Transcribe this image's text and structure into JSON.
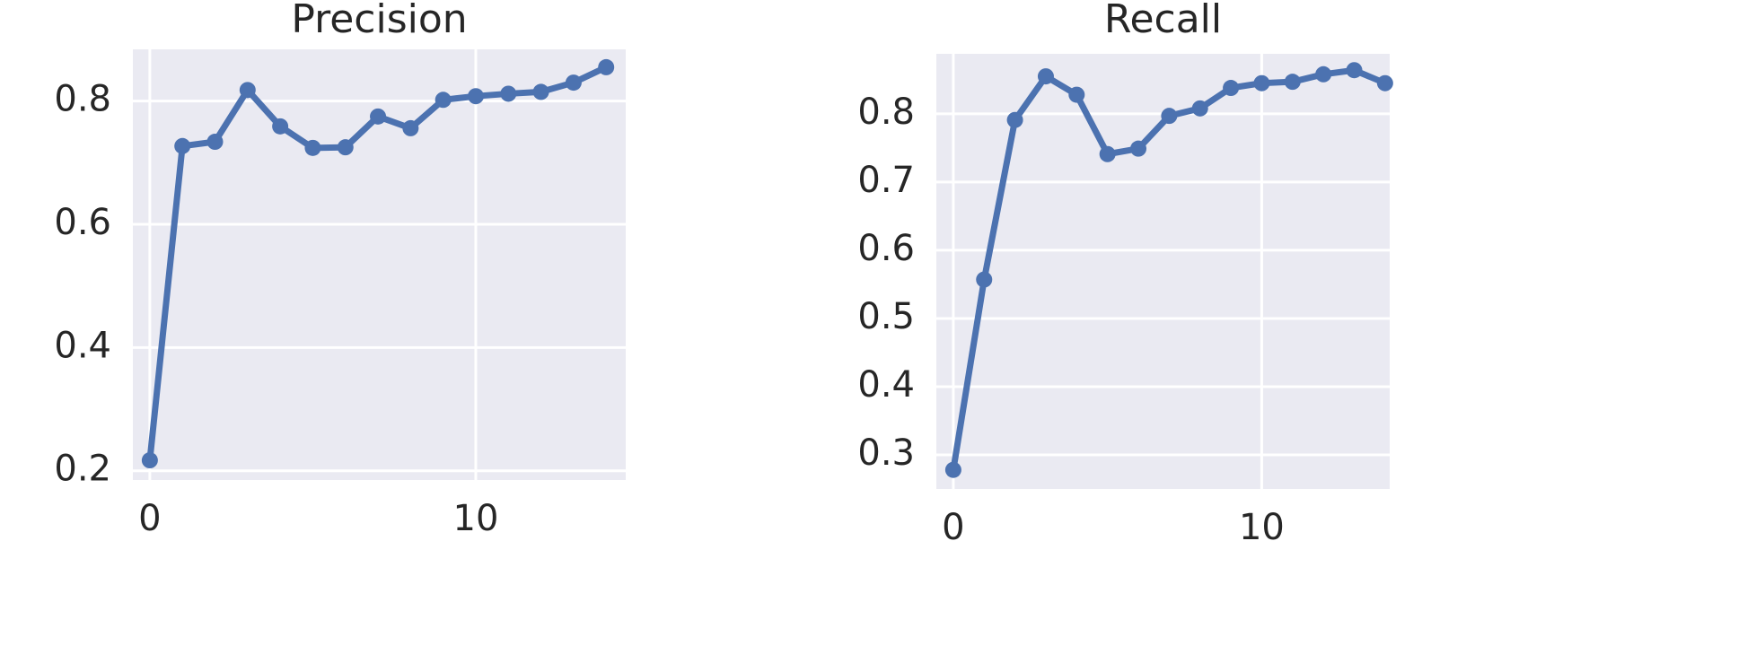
{
  "chart_data": [
    {
      "type": "line",
      "title": "Precision",
      "x": [
        0,
        1,
        2,
        3,
        4,
        5,
        6,
        7,
        8,
        9,
        10,
        11,
        12,
        13,
        14
      ],
      "series": [
        {
          "name": "precision",
          "color": "#4c72b0",
          "values": [
            0.217,
            0.727,
            0.734,
            0.818,
            0.759,
            0.724,
            0.725,
            0.775,
            0.756,
            0.802,
            0.808,
            0.812,
            0.815,
            0.83,
            0.855
          ]
        }
      ],
      "xlim": [
        -0.52,
        14.6
      ],
      "ylim": [
        0.185,
        0.884
      ],
      "xticks": [
        0,
        10
      ],
      "yticks": [
        0.2,
        0.4,
        0.6,
        0.8
      ],
      "grid": true
    },
    {
      "type": "line",
      "title": "Recall",
      "x": [
        0,
        1,
        2,
        3,
        4,
        5,
        6,
        7,
        8,
        9,
        10,
        11,
        12,
        13,
        14
      ],
      "series": [
        {
          "name": "recall",
          "color": "#4c72b0",
          "values": [
            0.278,
            0.557,
            0.791,
            0.855,
            0.828,
            0.741,
            0.749,
            0.797,
            0.808,
            0.838,
            0.845,
            0.847,
            0.858,
            0.864,
            0.845
          ]
        }
      ],
      "xlim": [
        -0.55,
        14.15
      ],
      "ylim": [
        0.25,
        0.888
      ],
      "xticks": [
        0,
        10
      ],
      "yticks": [
        0.3,
        0.4,
        0.5,
        0.6,
        0.7,
        0.8
      ],
      "grid": true
    }
  ]
}
